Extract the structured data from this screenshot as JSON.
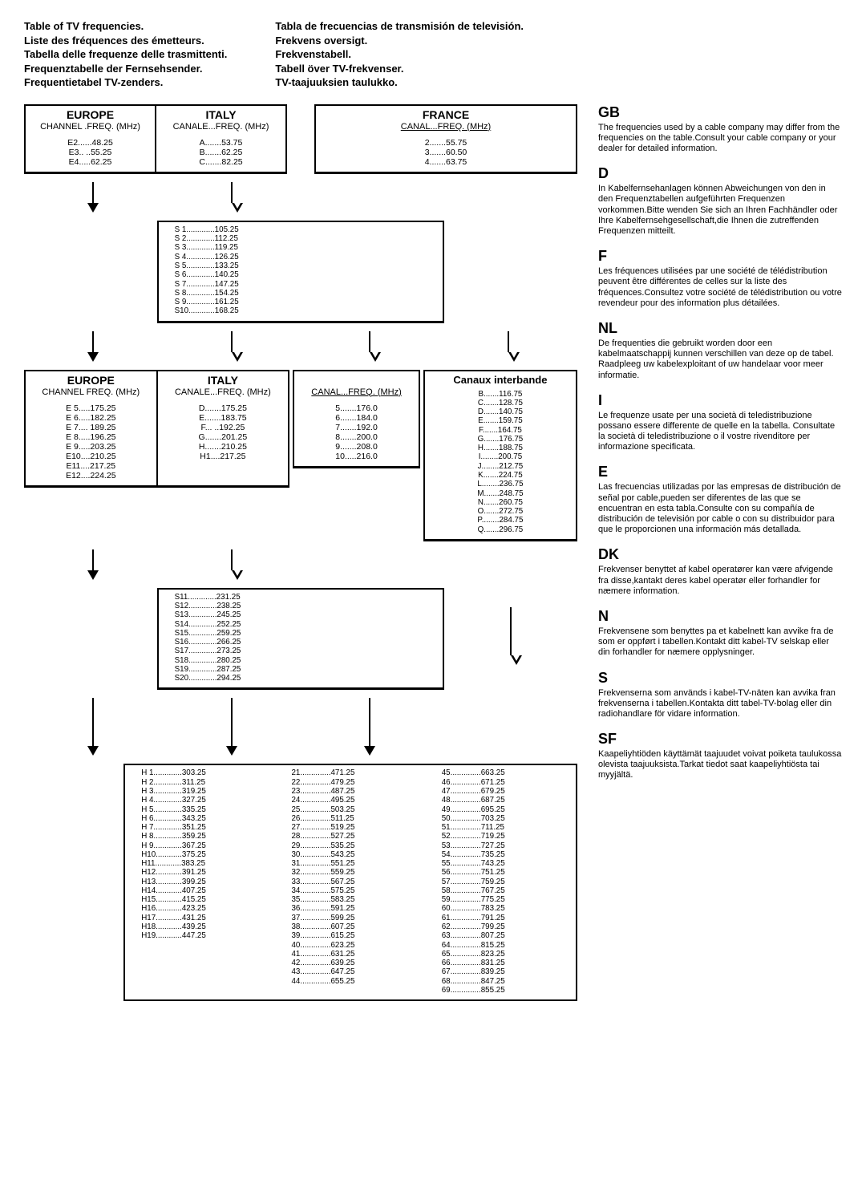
{
  "titlesLeft": [
    "Table of TV frequencies.",
    "Liste des fréquences des émetteurs.",
    "Tabella delle frequenze delle trasmittenti.",
    "Frequenztabelle der Fernsehsender.",
    "Frequentietabel TV-zenders."
  ],
  "titlesRight": [
    "Tabla de frecuencias de transmisión de televisión.",
    "Frekvens oversigt.",
    "Frekvenstabell.",
    "Tabell över TV-frekvenser.",
    "TV-taajuuksien taulukko."
  ],
  "band1": {
    "eur": {
      "title": "EUROPE",
      "sub": "CHANNEL .FREQ. (MHz)",
      "rows": [
        "E2......48.25",
        "E3.. ..55.25",
        "E4.....62.25"
      ]
    },
    "ita": {
      "title": "ITALY",
      "sub": "CANALE...FREQ. (MHz)",
      "rows": [
        "A.......53.75",
        "B.......62.25",
        "C.......82.25"
      ]
    },
    "fra": {
      "title": "FRANCE",
      "sub": "CANAL...FREQ. (MHz)",
      "rows": [
        "2.......55.75",
        "3.......60.50",
        "4.......63.75"
      ]
    }
  },
  "sband1": [
    "S 1.............105.25",
    "S 2.............112.25",
    "S 3.............119.25",
    "S 4.............126.25",
    "S 5.............133.25",
    "S 6.............140.25",
    "S 7.............147.25",
    "S 8.............154.25",
    "S 9.............161.25",
    "S10............168.25"
  ],
  "band3": {
    "eur": {
      "title": "EUROPE",
      "sub": "CHANNEL  FREQ. (MHz)",
      "rows": [
        "E 5.....175.25",
        "E 6.....182.25",
        "E 7.... 189.25",
        "E 8.....196.25",
        "E 9.....203.25",
        "E10....210.25",
        "E11....217.25",
        "E12....224.25"
      ]
    },
    "ita": {
      "title": "ITALY",
      "sub": "CANALE...FREQ. (MHz)",
      "rows": [
        "D.......175.25",
        "E.......183.75",
        "F... ..192.25",
        "G.......201.25",
        "H.......210.25",
        "H1....217.25"
      ]
    },
    "fra": {
      "sub": "CANAL...FREQ. (MHz)",
      "rows": [
        "5.......176.0",
        "6.......184.0",
        "7.......192.0",
        "8.......200.0",
        "9.......208.0",
        "10.....216.0"
      ]
    },
    "inter": {
      "title": "Canaux interbande",
      "rows": [
        "B.......116.75",
        "C.......128.75",
        "D.......140.75",
        "E.......159.75",
        "F.......164.75",
        "G.......176.75",
        "H.......188.75",
        "I........200.75",
        "J........212.75",
        "K.......224.75",
        "L........236.75",
        "M.......248.75",
        "N.......260.75",
        "O.......272.75",
        "P........284.75",
        "Q.......296.75"
      ]
    }
  },
  "sband2": [
    "S11.............231.25",
    "S12.............238.25",
    "S13.............245.25",
    "S14.............252.25",
    "S15.............259.25",
    "S16.............266.25",
    "S17.............273.25",
    "S18.............280.25",
    "S19.............287.25",
    "S20.............294.25"
  ],
  "uhfH": [
    "H 1.............303.25",
    "H 2.............311.25",
    "H 3.............319.25",
    "H 4.............327.25",
    "H 5.............335.25",
    "H 6.............343.25",
    "H 7.............351.25",
    "H 8.............359.25",
    "H 9.............367.25",
    "H10............375.25",
    "H11............383.25",
    "H12............391.25",
    "H13............399.25",
    "H14............407.25",
    "H15............415.25",
    "H16............423.25",
    "H17............431.25",
    "H18............439.25",
    "H19............447.25"
  ],
  "uhfA": [
    "21..............471.25",
    "22..............479.25",
    "23..............487.25",
    "24..............495.25",
    "25..............503.25",
    "26..............511.25",
    "27..............519.25",
    "28..............527.25",
    "29..............535.25",
    "30..............543.25",
    "31..............551.25",
    "32..............559.25",
    "33..............567.25",
    "34..............575.25",
    "35..............583.25",
    "36..............591.25",
    "37..............599.25",
    "38..............607.25",
    "39..............615.25",
    "40..............623.25",
    "41..............631.25",
    "42..............639.25",
    "43..............647.25",
    "44..............655.25"
  ],
  "uhfB": [
    "45..............663.25",
    "46..............671.25",
    "47..............679.25",
    "48..............687.25",
    "49..............695.25",
    "50..............703.25",
    "51..............711.25",
    "52..............719.25",
    "53..............727.25",
    "54..............735.25",
    "55..............743.25",
    "56..............751.25",
    "57..............759.25",
    "58..............767.25",
    "59..............775.25",
    "60..............783.25",
    "61..............791.25",
    "62..............799.25",
    "63..............807.25",
    "64..............815.25",
    "65..............823.25",
    "66..............831.25",
    "67..............839.25",
    "68..............847.25",
    "69..............855.25"
  ],
  "notes": [
    {
      "h": "GB",
      "p": "The frequencies used by a cable company may differ from the frequencies on the table.Consult your cable company or your dealer for detailed information."
    },
    {
      "h": "D",
      "p": "In Kabelfernsehanlagen können Abweichungen von den in den Frequenztabellen aufgeführten Frequenzen vorkommen.Bitte wenden Sie sich an Ihren Fachhändler oder Ihre Kabelfernsehgesellschaft,die Ihnen die zutreffenden Frequenzen mitteilt."
    },
    {
      "h": "F",
      "p": "Les fréquences utilisées par une société de télédistribution peuvent être différentes de celles sur la liste des fréquences.Consultez votre société de télédistribution ou votre revendeur pour des information plus détailées."
    },
    {
      "h": "NL",
      "p": "De frequenties die gebruikt worden door een kabelmaatschappij kunnen verschillen van deze op de tabel. Raadpleeg uw kabelexploitant of uw handelaar voor meer informatie."
    },
    {
      "h": "I",
      "p": "Le frequenze usate per una società di teledistribuzione possano essere differente de quelle en la tabella. Consultate la società di teledistribuzione o il vostre rivenditore per informazione specificata."
    },
    {
      "h": "E",
      "p": "Las frecuencias utilizadas por las empresas de distribución de señal por cable,pueden ser diferentes de las que se encuentran en esta tabla.Consulte con su compañía de distribución de televisión por cable o con su distribuidor para que le proporcionen una información más detallada."
    },
    {
      "h": "DK",
      "p": "Frekvenser benyttet af kabel operatører kan være afvigende fra disse,kantakt deres kabel operatør eller forhandler for næmere information."
    },
    {
      "h": "N",
      "p": "Frekvensene som benyttes pa et kabelnett kan avvike fra de som er oppført i tabellen.Kontakt ditt kabel-TV selskap eller din forhandler for næmere opplysninger."
    },
    {
      "h": "S",
      "p": "Frekvenserna som används i kabel-TV-näten kan avvika fran frekvenserna i tabellen.Kontakta ditt tabel-TV-bolag eller din radiohandlare för vidare information."
    },
    {
      "h": "SF",
      "p": "Kaapeliyhtiöden käyttämät taajuudet voivat poiketa taulukossa olevista taajuuksista.Tarkat tiedot saat kaapeliyhtiösta tai myyjältä."
    }
  ]
}
